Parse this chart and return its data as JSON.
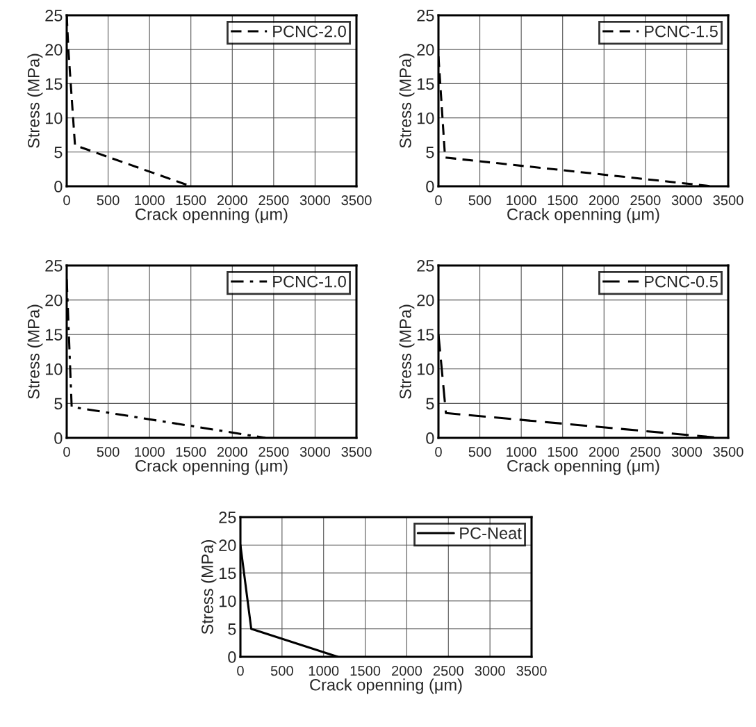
{
  "chart_data": [
    {
      "type": "line",
      "xlabel": "Crack openning (μm)",
      "ylabel": "Stress (MPa)",
      "xlim": [
        0,
        3500
      ],
      "ylim": [
        0,
        25
      ],
      "xticks": [
        0,
        500,
        1000,
        1500,
        2000,
        2500,
        3000,
        3500
      ],
      "yticks": [
        0,
        5,
        10,
        15,
        20,
        25
      ],
      "grid": true,
      "legend": "top right",
      "series": [
        {
          "name": "PCNC-2.0",
          "color": "#000000",
          "line_style": "dashed",
          "x": [
            0,
            20,
            100,
            1500
          ],
          "values": [
            25,
            20,
            6,
            0
          ]
        }
      ]
    },
    {
      "type": "line",
      "xlabel": "Crack openning (μm)",
      "ylabel": "Stress (MPa)",
      "xlim": [
        0,
        3500
      ],
      "ylim": [
        0,
        25
      ],
      "xticks": [
        0,
        500,
        1000,
        1500,
        2000,
        2500,
        3000,
        3500
      ],
      "yticks": [
        0,
        5,
        10,
        15,
        20,
        25
      ],
      "grid": true,
      "legend": "top right",
      "series": [
        {
          "name": "PCNC-1.5",
          "color": "#000000",
          "line_style": "dashed",
          "x": [
            0,
            80,
            3300
          ],
          "values": [
            19,
            4.2,
            0
          ]
        }
      ]
    },
    {
      "type": "line",
      "xlabel": "Crack openning (μm)",
      "ylabel": "Stress (MPa)",
      "xlim": [
        0,
        3500
      ],
      "ylim": [
        0,
        25
      ],
      "xticks": [
        0,
        500,
        1000,
        1500,
        2000,
        2500,
        3000,
        3500
      ],
      "yticks": [
        0,
        5,
        10,
        15,
        20,
        25
      ],
      "grid": true,
      "legend": "top right",
      "series": [
        {
          "name": "PCNC-1.0",
          "color": "#000000",
          "line_style": "dashdot",
          "x": [
            0,
            60,
            2400
          ],
          "values": [
            23,
            4.5,
            0
          ]
        }
      ]
    },
    {
      "type": "line",
      "xlabel": "Crack openning (μm)",
      "ylabel": "Stress (MPa)",
      "xlim": [
        0,
        3500
      ],
      "ylim": [
        0,
        25
      ],
      "xticks": [
        0,
        500,
        1000,
        1500,
        2000,
        2500,
        3000,
        3500
      ],
      "yticks": [
        0,
        5,
        10,
        15,
        20,
        25
      ],
      "grid": true,
      "legend": "top right",
      "series": [
        {
          "name": "PCNC-0.5",
          "color": "#000000",
          "line_style": "longdash",
          "x": [
            0,
            20,
            90,
            3400
          ],
          "values": [
            15,
            12.5,
            3.6,
            0
          ]
        }
      ]
    },
    {
      "type": "line",
      "xlabel": "Crack openning (μm)",
      "ylabel": "Stress (MPa)",
      "xlim": [
        0,
        3500
      ],
      "ylim": [
        0,
        25
      ],
      "xticks": [
        0,
        500,
        1000,
        1500,
        2000,
        2500,
        3000,
        3500
      ],
      "yticks": [
        0,
        5,
        10,
        15,
        20,
        25
      ],
      "grid": true,
      "legend": "top right",
      "series": [
        {
          "name": "PC-Neat",
          "color": "#000000",
          "line_style": "solid",
          "x": [
            0,
            130,
            1170
          ],
          "values": [
            20,
            5,
            0
          ]
        }
      ]
    }
  ]
}
